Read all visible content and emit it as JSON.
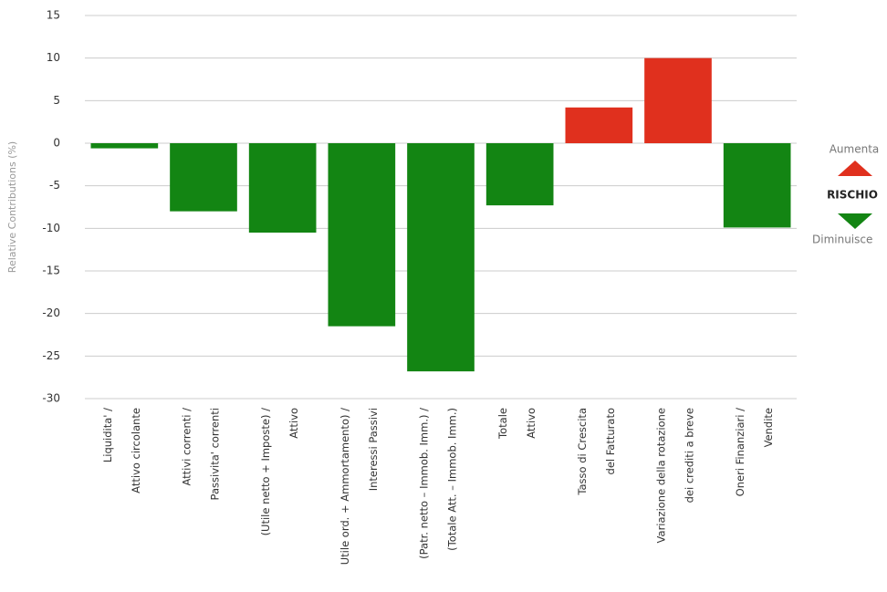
{
  "chart_data": {
    "type": "bar",
    "y_label": "Relative Contributions (%)",
    "categories": [
      [
        "Liquidita' /",
        "Attivo circolante"
      ],
      [
        "Attivi correnti /",
        "Passivita' correnti"
      ],
      [
        "(Utile netto + Imposte) /",
        "Attivo"
      ],
      [
        "Utile ord. + Ammortamento) /",
        "Interessi Passivi"
      ],
      [
        "(Patr. netto – Immob. Imm.) /",
        "(Totale Att. – Immob. Imm.)"
      ],
      [
        "Totale",
        "Attivo"
      ],
      [
        "Tasso di Crescita",
        "del Fatturato"
      ],
      [
        "Variazione della rotazione",
        "dei crediti a breve"
      ],
      [
        "Oneri Finanziari /",
        "Vendite"
      ]
    ],
    "values": [
      -0.6,
      -8,
      -10.5,
      -21.5,
      -26.8,
      -7.3,
      4.2,
      10,
      -9.9
    ],
    "colors": [
      "#138513",
      "#138513",
      "#138513",
      "#138513",
      "#138513",
      "#138513",
      "#e0301e",
      "#e0301e",
      "#138513"
    ],
    "ylim": [
      -30,
      15
    ],
    "yticks": [
      -30,
      -25,
      -20,
      -15,
      -10,
      -5,
      0,
      5,
      10,
      15
    ],
    "grid": true,
    "legend": {
      "up": "Aumenta",
      "title": "RISCHIO",
      "down": "Diminuisce",
      "up_color": "#e0301e",
      "down_color": "#138513"
    }
  }
}
